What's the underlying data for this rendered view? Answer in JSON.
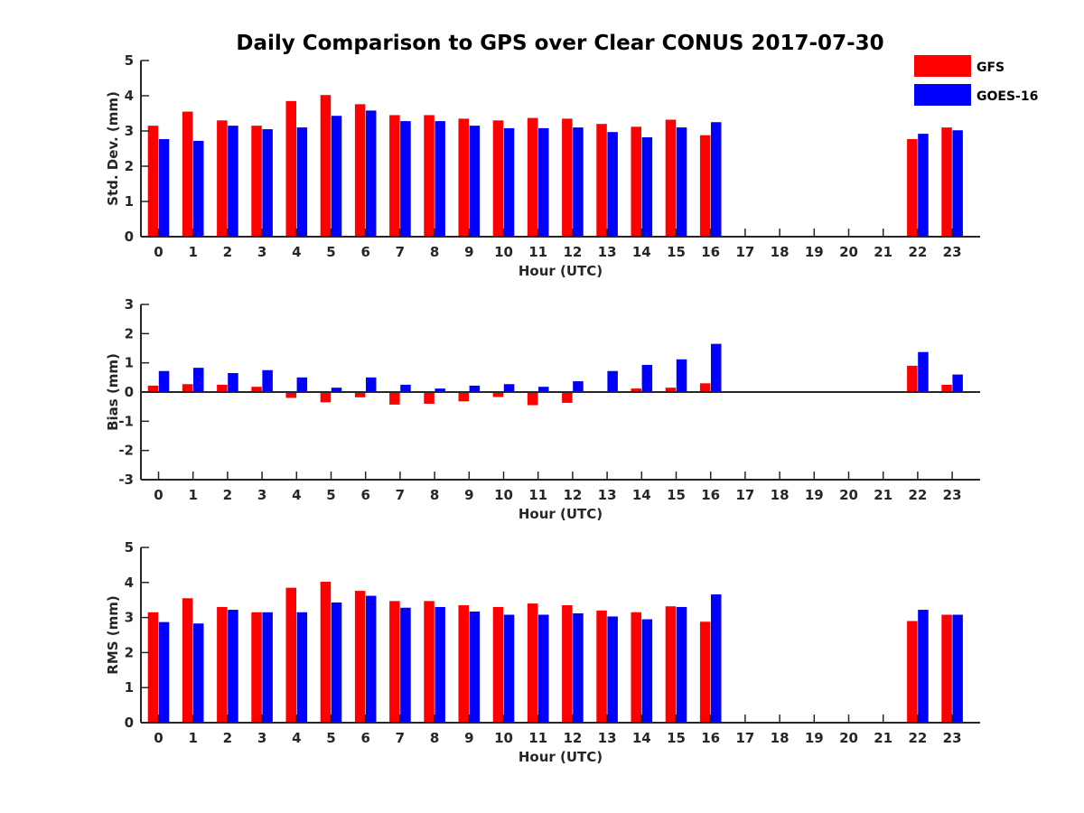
{
  "title": "Daily Comparison to GPS over Clear CONUS 2017-07-30",
  "colors": {
    "gfs": "#ff0000",
    "goes": "#0000ff",
    "axis": "#262626"
  },
  "chart_data": [
    {
      "type": "bar",
      "ylabel": "Std. Dev. (mm)",
      "xlabel": "Hour (UTC)",
      "ylim": [
        0,
        5
      ],
      "yticks": [
        0,
        1,
        2,
        3,
        4,
        5
      ],
      "categories": [
        0,
        1,
        2,
        3,
        4,
        5,
        6,
        7,
        8,
        9,
        10,
        11,
        12,
        13,
        14,
        15,
        16,
        17,
        18,
        19,
        20,
        21,
        22,
        23
      ],
      "series": [
        {
          "name": "GFS",
          "values": [
            3.15,
            3.55,
            3.3,
            3.15,
            3.85,
            4.02,
            3.76,
            3.45,
            3.45,
            3.35,
            3.3,
            3.37,
            3.35,
            3.2,
            3.12,
            3.32,
            2.88,
            null,
            null,
            null,
            null,
            null,
            2.77,
            3.1
          ]
        },
        {
          "name": "GOES-16",
          "values": [
            2.77,
            2.72,
            3.15,
            3.05,
            3.1,
            3.43,
            3.58,
            3.28,
            3.28,
            3.15,
            3.08,
            3.08,
            3.1,
            2.97,
            2.82,
            3.1,
            3.25,
            null,
            null,
            null,
            null,
            null,
            2.92,
            3.02
          ]
        }
      ]
    },
    {
      "type": "bar",
      "ylabel": "Bias (mm)",
      "xlabel": "Hour (UTC)",
      "ylim": [
        -3,
        3
      ],
      "yticks": [
        -3,
        -2,
        -1,
        0,
        1,
        2,
        3
      ],
      "categories": [
        0,
        1,
        2,
        3,
        4,
        5,
        6,
        7,
        8,
        9,
        10,
        11,
        12,
        13,
        14,
        15,
        16,
        17,
        18,
        19,
        20,
        21,
        22,
        23
      ],
      "series": [
        {
          "name": "GFS",
          "values": [
            0.22,
            0.27,
            0.25,
            0.18,
            -0.2,
            -0.35,
            -0.18,
            -0.43,
            -0.4,
            -0.32,
            -0.17,
            -0.45,
            -0.37,
            0.03,
            0.12,
            0.15,
            0.3,
            null,
            null,
            null,
            null,
            null,
            0.9,
            0.25
          ]
        },
        {
          "name": "GOES-16",
          "values": [
            0.72,
            0.83,
            0.65,
            0.75,
            0.5,
            0.15,
            0.5,
            0.25,
            0.12,
            0.22,
            0.27,
            0.18,
            0.37,
            0.72,
            0.93,
            1.12,
            1.65,
            null,
            null,
            null,
            null,
            null,
            1.37,
            0.6
          ]
        }
      ]
    },
    {
      "type": "bar",
      "ylabel": "RMS (mm)",
      "xlabel": "Hour (UTC)",
      "ylim": [
        0,
        5
      ],
      "yticks": [
        0,
        1,
        2,
        3,
        4,
        5
      ],
      "categories": [
        0,
        1,
        2,
        3,
        4,
        5,
        6,
        7,
        8,
        9,
        10,
        11,
        12,
        13,
        14,
        15,
        16,
        17,
        18,
        19,
        20,
        21,
        22,
        23
      ],
      "series": [
        {
          "name": "GFS",
          "values": [
            3.15,
            3.55,
            3.3,
            3.15,
            3.85,
            4.02,
            3.76,
            3.47,
            3.47,
            3.35,
            3.3,
            3.4,
            3.35,
            3.2,
            3.15,
            3.32,
            2.88,
            null,
            null,
            null,
            null,
            null,
            2.9,
            3.08
          ]
        },
        {
          "name": "GOES-16",
          "values": [
            2.87,
            2.83,
            3.22,
            3.15,
            3.15,
            3.43,
            3.62,
            3.28,
            3.3,
            3.17,
            3.08,
            3.08,
            3.12,
            3.03,
            2.95,
            3.3,
            3.66,
            null,
            null,
            null,
            null,
            null,
            3.22,
            3.08
          ]
        }
      ]
    }
  ],
  "legend": [
    {
      "label": "GFS",
      "color": "#ff0000"
    },
    {
      "label": "GOES-16",
      "color": "#0000ff"
    }
  ]
}
